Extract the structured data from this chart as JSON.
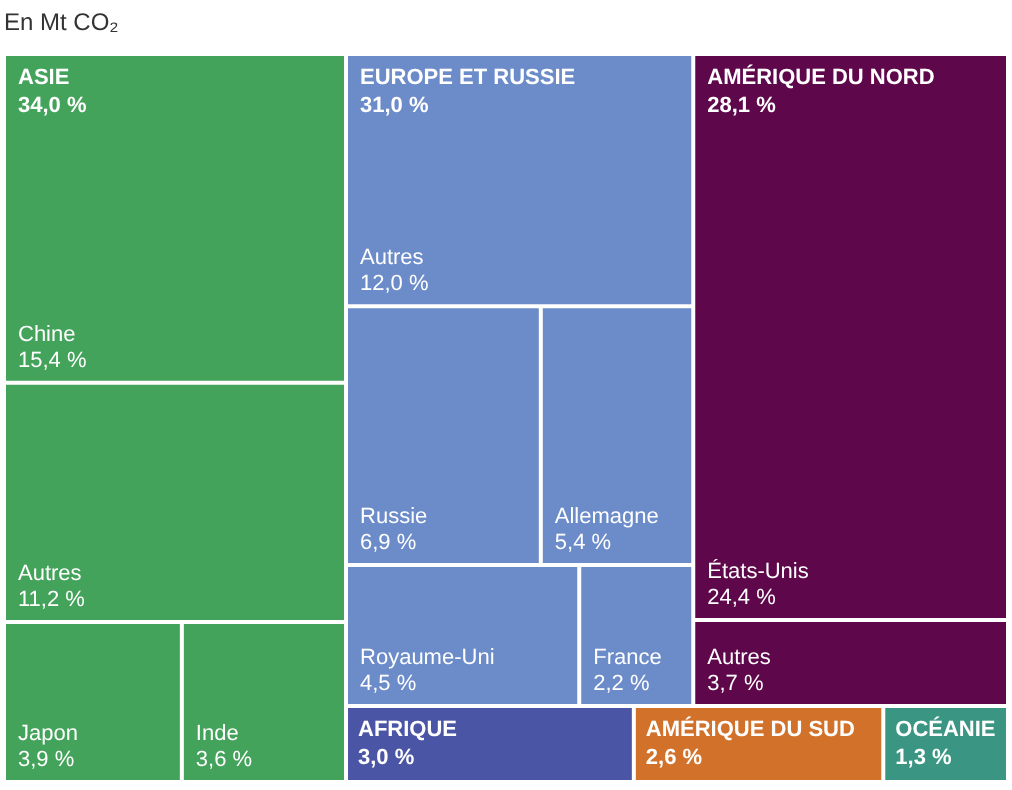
{
  "chart_data": {
    "type": "other",
    "title": "En Mt CO₂",
    "categories": [
      "Chine",
      "Autres",
      "Japon",
      "Inde",
      "Autres",
      "Russie",
      "Allemagne",
      "Royaume-Uni",
      "France",
      "États-Unis",
      "Autres",
      "AFRIQUE",
      "AMÉRIQUE DU SUD",
      "OCÉANIE"
    ],
    "series": [
      {
        "name": "ASIE",
        "color": "#43a35a",
        "values": [
          15.4,
          11.2,
          3.9,
          3.6,
          null,
          null,
          null,
          null,
          null,
          null,
          null,
          null,
          null,
          null
        ],
        "value_labels": [
          "15,4 %",
          "11,2 %",
          "3,9 %",
          "3,6 %",
          null,
          null,
          null,
          null,
          null,
          null,
          null,
          null,
          null,
          null
        ]
      },
      {
        "name": "EUROPE ET RUSSIE",
        "color": "#6b8bc9",
        "values": [
          null,
          null,
          null,
          null,
          12.0,
          6.9,
          5.4,
          4.5,
          2.2,
          null,
          null,
          null,
          null,
          null
        ],
        "value_labels": [
          null,
          null,
          null,
          null,
          "12,0 %",
          "6,9 %",
          "5,4 %",
          "4,5 %",
          "2,2 %",
          null,
          null,
          null,
          null,
          null
        ]
      },
      {
        "name": "AMÉRIQUE DU NORD",
        "color": "#5e074b",
        "values": [
          null,
          null,
          null,
          null,
          null,
          null,
          null,
          null,
          null,
          24.4,
          3.7,
          null,
          null,
          null
        ],
        "value_labels": [
          null,
          null,
          null,
          null,
          null,
          null,
          null,
          null,
          null,
          "24,4 %",
          "3,7 %",
          null,
          null,
          null
        ]
      },
      {
        "color": "#4b55a6",
        "values": [
          null,
          null,
          null,
          null,
          null,
          null,
          null,
          null,
          null,
          null,
          null,
          3.0,
          null,
          null
        ],
        "value_labels": [
          null,
          null,
          null,
          null,
          null,
          null,
          null,
          null,
          null,
          null,
          null,
          "3,0 %",
          null,
          null
        ]
      },
      {
        "color": "#d2722a",
        "values": [
          null,
          null,
          null,
          null,
          null,
          null,
          null,
          null,
          null,
          null,
          null,
          null,
          2.6,
          null
        ],
        "value_labels": [
          null,
          null,
          null,
          null,
          null,
          null,
          null,
          null,
          null,
          null,
          null,
          null,
          "2,6 %",
          null
        ]
      },
      {
        "color": "#3a9682",
        "values": [
          null,
          null,
          null,
          null,
          null,
          null,
          null,
          null,
          null,
          null,
          null,
          null,
          null,
          1.3
        ],
        "value_labels": [
          null,
          null,
          null,
          null,
          null,
          null,
          null,
          null,
          null,
          null,
          null,
          null,
          null,
          "1,3 %"
        ]
      }
    ],
    "totals": [
      "34,0 %",
      "31,0 %",
      "28,1 %",
      null,
      null,
      null
    ]
  }
}
